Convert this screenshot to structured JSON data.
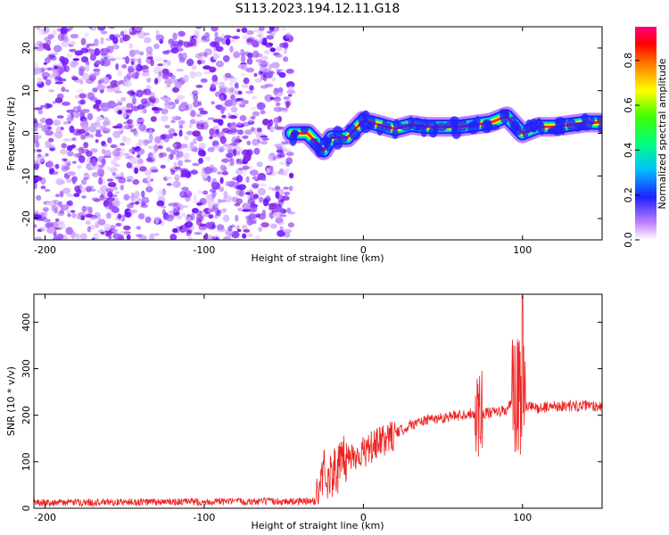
{
  "title": "S113.2023.194.12.11.G18",
  "colors": {
    "snr_line": "#ee2222",
    "noise_purple": "#7a1fff",
    "axis": "#000000"
  },
  "chart_data": [
    {
      "type": "heatmap",
      "xlabel": "Height of straight line (km)",
      "ylabel": "Frequency (Hz)",
      "xlim": [
        -207,
        150
      ],
      "ylim": [
        -25,
        25
      ],
      "x_ticks": [
        -200,
        -100,
        0,
        100
      ],
      "y_ticks": [
        -20,
        -10,
        0,
        10,
        20
      ],
      "colorbar": {
        "label": "Normalized spectral amplitude",
        "range": [
          0,
          0.95
        ],
        "ticks": [
          0.0,
          0.2,
          0.4,
          0.6,
          0.8
        ],
        "colormap": "rainbow"
      },
      "signal_trace": {
        "x": [
          -45,
          -35,
          -25,
          -20,
          -10,
          0,
          10,
          20,
          30,
          40,
          50,
          60,
          70,
          80,
          90,
          100,
          110,
          120,
          130,
          140,
          150
        ],
        "frequency": [
          0,
          0,
          -4,
          -1,
          -1,
          3,
          2,
          1,
          2,
          1.5,
          1.5,
          1.5,
          2,
          2.5,
          4,
          0,
          1.5,
          1.5,
          2,
          2.5,
          2.5
        ]
      },
      "noise_region_x": [
        -207,
        -45
      ]
    },
    {
      "type": "line",
      "xlabel": "Height of straight line (km)",
      "ylabel": "SNR (10 * v/v)",
      "xlim": [
        -207,
        150
      ],
      "ylim": [
        0,
        460
      ],
      "x_ticks": [
        -200,
        -100,
        0,
        100
      ],
      "y_ticks": [
        0,
        100,
        200,
        300,
        400
      ],
      "series": [
        {
          "x": [
            -207,
            -30,
            -25,
            -20,
            -15,
            -10,
            0,
            10,
            20,
            30,
            40,
            50,
            60,
            70,
            80,
            90,
            95,
            100,
            110,
            120,
            130,
            140,
            150
          ],
          "values": [
            12,
            15,
            80,
            70,
            90,
            110,
            120,
            140,
            160,
            180,
            190,
            195,
            200,
            205,
            205,
            210,
            240,
            220,
            215,
            220,
            220,
            220,
            220
          ]
        }
      ]
    }
  ]
}
